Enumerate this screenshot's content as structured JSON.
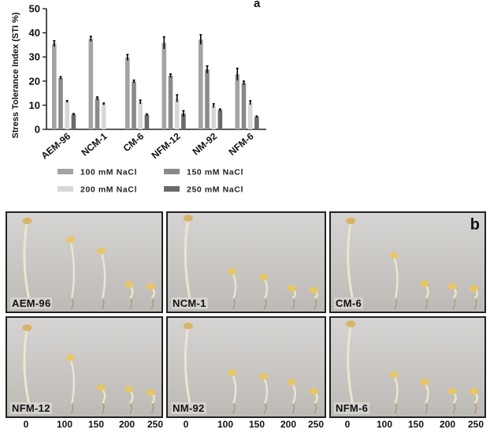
{
  "chart_data": {
    "type": "bar",
    "panel_label": "a",
    "ylabel": "Stress Tolerance Index (STI %)",
    "xlabel": "",
    "ylim": [
      0,
      50
    ],
    "yticks": [
      "0",
      "10",
      "20",
      "30",
      "40",
      "50"
    ],
    "categories": [
      "AEM-96",
      "NCM-1",
      "CM-6",
      "NFM-12",
      "NM-92",
      "NFM-6"
    ],
    "legend_position": "bottom",
    "series": [
      {
        "name": "100 mM NaCl",
        "color": "#a3a3a3",
        "values": [
          35.5,
          37.5,
          29.8,
          35.8,
          37.2,
          22.8
        ],
        "errors": [
          1.2,
          1.0,
          1.2,
          2.5,
          2.0,
          2.5
        ]
      },
      {
        "name": "150 mM NaCl",
        "color": "#8a8a8a",
        "values": [
          21.3,
          12.8,
          19.8,
          22.2,
          24.8,
          19.2
        ],
        "errors": [
          0.5,
          0.6,
          0.6,
          0.7,
          1.5,
          0.8
        ]
      },
      {
        "name": "200 mM NaCl",
        "color": "#d7d7d7",
        "values": [
          11.5,
          10.5,
          11.3,
          12.8,
          9.8,
          11.0
        ],
        "errors": [
          0.4,
          0.4,
          0.8,
          1.5,
          0.8,
          0.8
        ]
      },
      {
        "name": "250 mM NaCl",
        "color": "#6a6a6a",
        "values": [
          6.2,
          0,
          6.0,
          6.5,
          8.0,
          5.2
        ],
        "errors": [
          0.3,
          0,
          0.4,
          1.2,
          0.4,
          0.3
        ]
      }
    ]
  },
  "photos": {
    "panel_label": "b",
    "panels": [
      {
        "label": "AEM-96"
      },
      {
        "label": "NCM-1"
      },
      {
        "label": "CM-6"
      },
      {
        "label": "NFM-12"
      },
      {
        "label": "NM-92"
      },
      {
        "label": "NFM-6"
      }
    ],
    "concentrations": [
      "0",
      "100",
      "150",
      "200",
      "250"
    ]
  }
}
